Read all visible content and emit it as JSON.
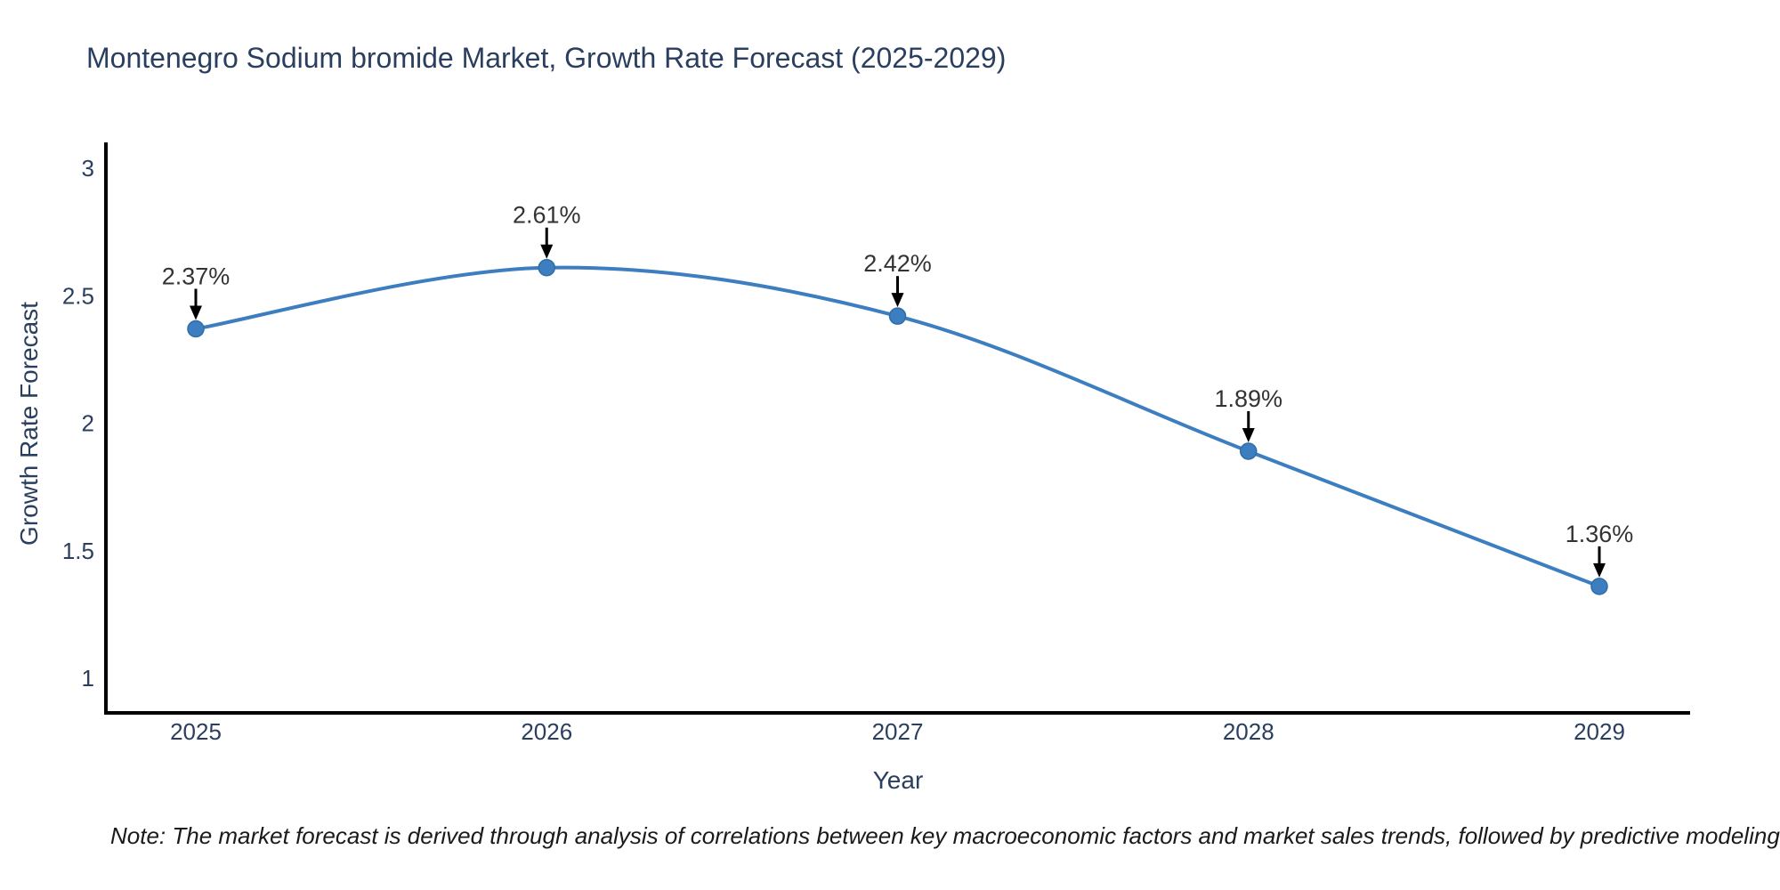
{
  "note": "Note: The market forecast is derived through analysis of correlations between key macroeconomic factors and market sales trends, followed by predictive modeling to project future sales",
  "chart_data": {
    "type": "line",
    "title": "Montenegro Sodium bromide Market, Growth Rate Forecast (2025-2029)",
    "xlabel": "Year",
    "ylabel": "Growth Rate Forecast",
    "categories": [
      "2025",
      "2026",
      "2027",
      "2028",
      "2029"
    ],
    "values": [
      2.37,
      2.61,
      2.42,
      1.89,
      1.36
    ],
    "point_labels": [
      "2.37%",
      "2.61%",
      "2.42%",
      "1.89%",
      "1.36%"
    ],
    "yticks": [
      1,
      1.5,
      2,
      2.5,
      3
    ],
    "ylim": [
      0.86,
      3.1
    ],
    "line_shape": "spline",
    "grid": false,
    "legend": "none",
    "colors": {
      "line": "#3c7ebf",
      "marker_fill": "#3c7ebf",
      "marker_stroke": "#2f6da8",
      "arrow": "#000000",
      "axis_line": "#000000",
      "axis_text": "#2a3f5f",
      "annotation_text": "#333333"
    }
  }
}
